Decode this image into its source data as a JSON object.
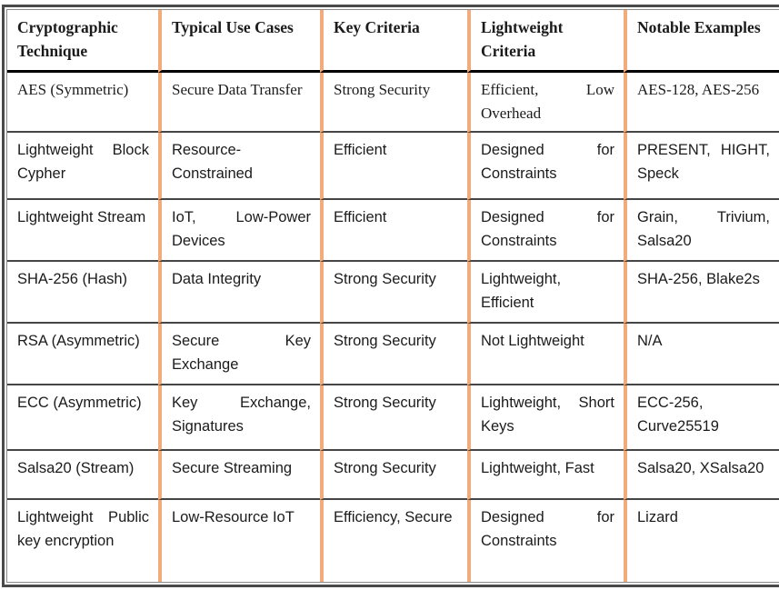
{
  "colors": {
    "divider": "#F2AB7D",
    "row_border": "#454545",
    "header_border": "#000000",
    "frame": "#4a4a4a",
    "text": "#1b1b1b"
  },
  "table": {
    "headers": [
      "Cryptographic Technique",
      "Typical Use Cases",
      "Key Criteria",
      "Lightweight Criteria",
      "Notable Examples"
    ],
    "rows": [
      {
        "cells": [
          "AES (Symmetric)",
          "Secure Data Transfer",
          "Strong Security",
          "Efficient, Low Overhead",
          "AES-128, AES-256"
        ]
      },
      {
        "cells": [
          "Lightweight Block Cypher",
          "Resource-Constrained",
          "Efficient",
          "Designed for Constraints",
          "PRESENT, HIGHT, Speck"
        ]
      },
      {
        "cells": [
          "Lightweight Stream",
          "IoT, Low-Power Devices",
          "Efficient",
          "Designed for Constraints",
          "Grain, Trivium, Salsa20"
        ]
      },
      {
        "cells": [
          "SHA-256 (Hash)",
          "Data Integrity",
          "Strong Security",
          "Lightweight, Efficient",
          "SHA-256, Blake2s"
        ]
      },
      {
        "cells": [
          "RSA (Asymmetric)",
          "Secure Key Exchange",
          "Strong Security",
          "Not Lightweight",
          "N/A"
        ]
      },
      {
        "cells": [
          "ECC (Asymmetric)",
          "Key Exchange, Signatures",
          "Strong Security",
          "Lightweight, Short Keys",
          "ECC-256, Curve25519"
        ]
      },
      {
        "cells": [
          "Salsa20 (Stream)",
          "Secure Streaming",
          "Strong Security",
          "Lightweight, Fast",
          "Salsa20, XSalsa20"
        ]
      },
      {
        "cells": [
          "Lightweight Public key encryption",
          "Low-Resource IoT",
          "Efficiency, Secure",
          "Designed for Constraints",
          "Lizard"
        ]
      }
    ]
  }
}
